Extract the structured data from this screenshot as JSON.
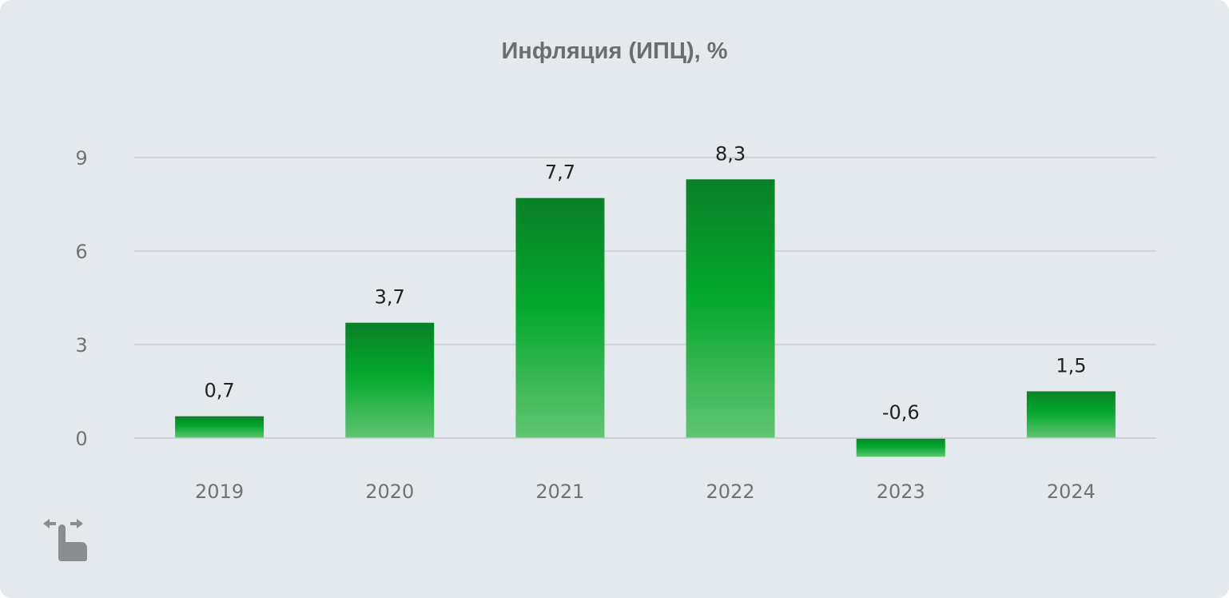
{
  "chart_data": {
    "type": "bar",
    "title": "Инфляция (ИПЦ), %",
    "categories": [
      "2019",
      "2020",
      "2021",
      "2022",
      "2023",
      "2024"
    ],
    "values": [
      0.7,
      3.7,
      7.7,
      8.3,
      -0.6,
      1.5
    ],
    "value_labels": [
      "0,7",
      "3,7",
      "7,7",
      "8,3",
      "-0,6",
      "1,5"
    ],
    "y_ticks": [
      0,
      3,
      6,
      9
    ],
    "ylim": [
      -0.6,
      9
    ],
    "xlabel": "",
    "ylabel": "",
    "grid": true,
    "legend": "none",
    "colors": {
      "bar_top": "#0a8128",
      "bar_mid": "#03a82d",
      "bar_bottom": "#62c472",
      "grid": "#c9cdd1",
      "background": "#e4e9ed"
    }
  },
  "controls": {
    "swipe_hint_icon": "swipe-horizontal-hand-icon"
  }
}
